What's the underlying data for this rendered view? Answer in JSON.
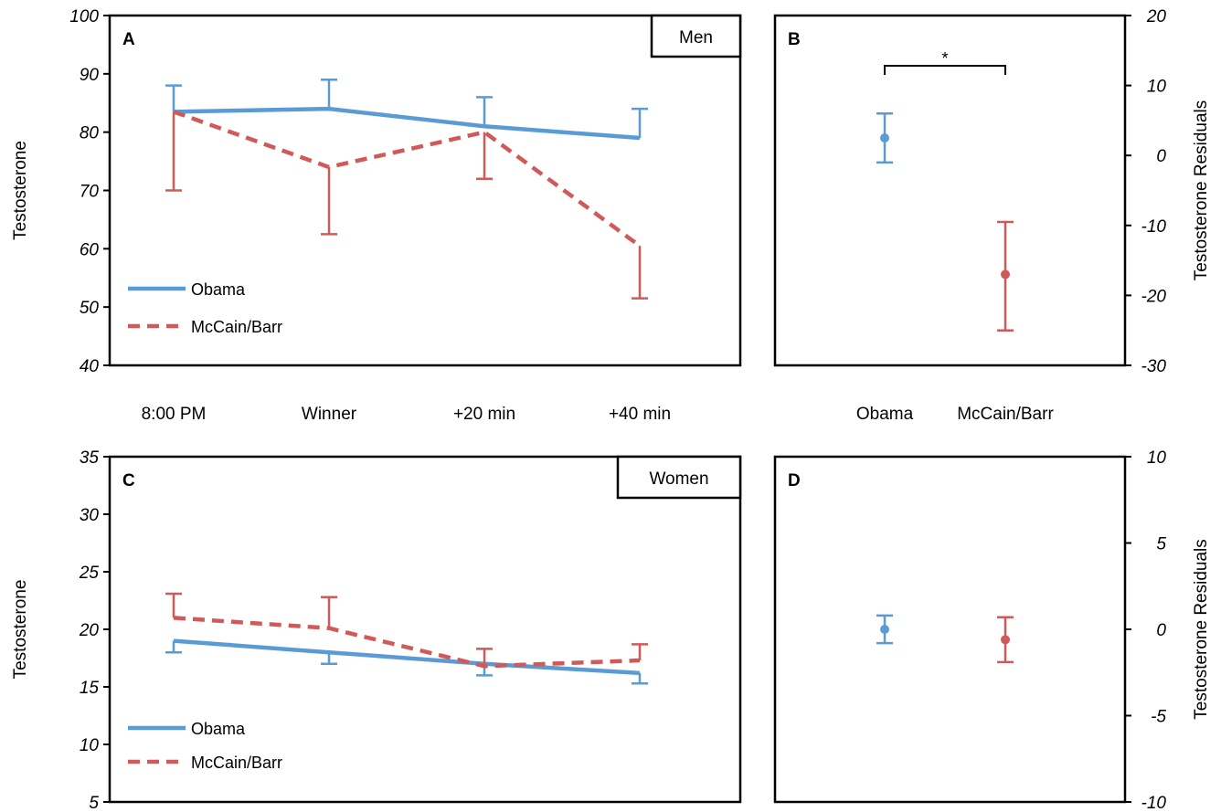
{
  "chart_data": [
    {
      "panel": "A",
      "type": "line",
      "tag": "Men",
      "ylabel": "Testosterone",
      "categories": [
        "8:00 PM",
        "Winner",
        "+20 min",
        "+40 min"
      ],
      "ylim": [
        40,
        100
      ],
      "yticks": [
        "100",
        "90",
        "80",
        "70",
        "60",
        "50",
        "40"
      ],
      "series": [
        {
          "name": "Obama",
          "style": "solid",
          "color": "#5b9bd5",
          "values": [
            83.5,
            84,
            81,
            79
          ],
          "err_upper": [
            88,
            89,
            86,
            84
          ],
          "err_lower": [
            null,
            null,
            null,
            null
          ]
        },
        {
          "name": "McCain/Barr",
          "style": "dashed",
          "color": "#d05a5a",
          "values": [
            83.5,
            74,
            80,
            60.5
          ],
          "err_upper": [
            null,
            null,
            null,
            null
          ],
          "err_lower": [
            70,
            62.5,
            72,
            51.5
          ]
        }
      ]
    },
    {
      "panel": "B",
      "type": "scatter",
      "ylabel": "Testosterone Residuals",
      "categories": [
        "Obama",
        "McCain/Barr"
      ],
      "ylim": [
        -30,
        20
      ],
      "yticks": [
        "20",
        "10",
        "0",
        "-10",
        "-20",
        "-30"
      ],
      "significance": "*",
      "points": [
        {
          "category": "Obama",
          "color": "#5b9bd5",
          "value": 2.5,
          "err_upper": 6,
          "err_lower": -1
        },
        {
          "category": "McCain/Barr",
          "color": "#d05a5a",
          "value": -17,
          "err_upper": -9.5,
          "err_lower": -25
        }
      ]
    },
    {
      "panel": "C",
      "type": "line",
      "tag": "Women",
      "ylabel": "Testosterone",
      "categories": [
        "8:00 PM",
        "Winner",
        "+20 min",
        "+40 min"
      ],
      "ylim": [
        5,
        35
      ],
      "yticks": [
        "35",
        "30",
        "25",
        "20",
        "15",
        "10",
        "5"
      ],
      "series": [
        {
          "name": "Obama",
          "style": "solid",
          "color": "#5b9bd5",
          "values": [
            19,
            18,
            17,
            16.2
          ],
          "err_upper": [
            null,
            null,
            null,
            null
          ],
          "err_lower": [
            18,
            17,
            16,
            15.3
          ]
        },
        {
          "name": "McCain/Barr",
          "style": "dashed",
          "color": "#d05a5a",
          "values": [
            21,
            20.1,
            16.8,
            17.3
          ],
          "err_upper": [
            23.1,
            22.8,
            18.3,
            18.7
          ],
          "err_lower": [
            null,
            null,
            null,
            null
          ]
        }
      ]
    },
    {
      "panel": "D",
      "type": "scatter",
      "ylabel": "Testosterone Residuals",
      "categories": [
        "Obama",
        "McCain/Barr"
      ],
      "ylim": [
        -10,
        10
      ],
      "yticks": [
        "10",
        "5",
        "0",
        "-5",
        "-10"
      ],
      "points": [
        {
          "category": "Obama",
          "color": "#5b9bd5",
          "value": 0,
          "err_upper": 0.8,
          "err_lower": -0.8
        },
        {
          "category": "McCain/Barr",
          "color": "#d05a5a",
          "value": -0.6,
          "err_upper": 0.7,
          "err_lower": -1.9
        }
      ]
    }
  ]
}
